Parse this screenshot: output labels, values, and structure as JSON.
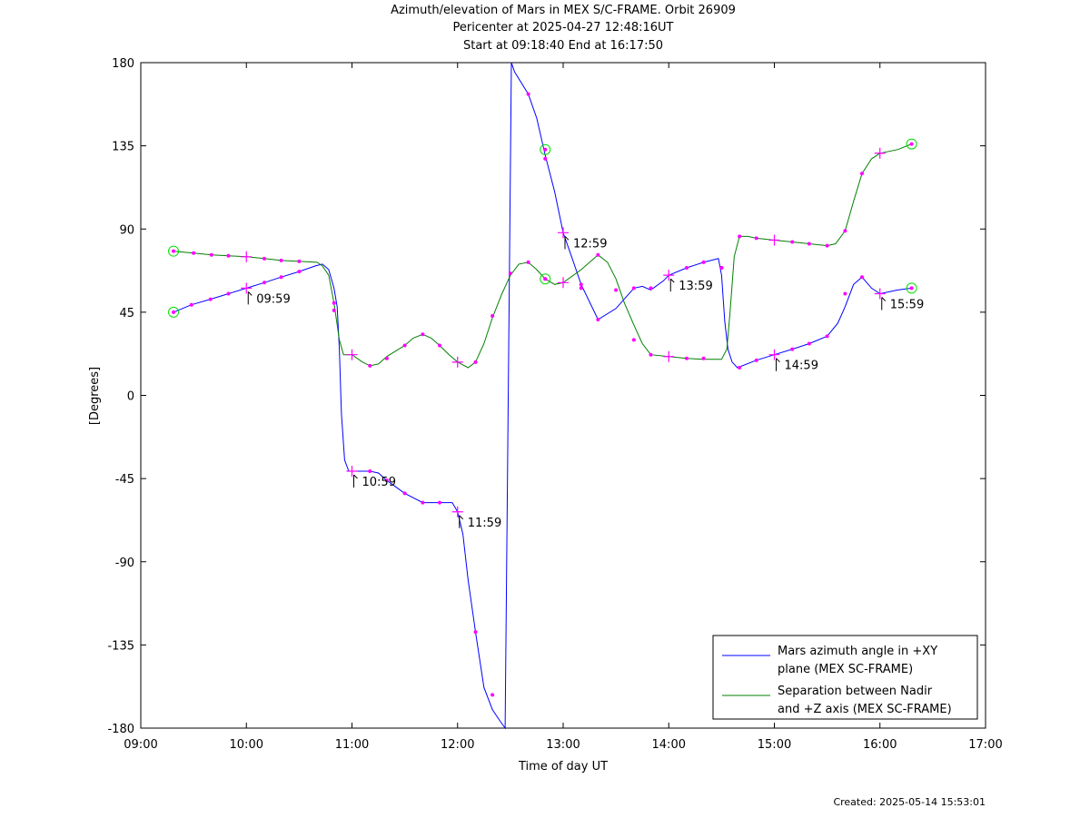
{
  "chart_data": {
    "type": "line",
    "title": "Azimuth/elevation of Mars in MEX S/C-FRAME.  Orbit 26909",
    "subtitle_1": "Pericenter at 2025-04-27 12:48:16UT",
    "subtitle_2": "Start at 09:18:40 End at 16:17:50",
    "xlabel": "Time of day UT",
    "ylabel": "[Degrees]",
    "xlim": [
      9.0,
      17.0
    ],
    "ylim": [
      -180,
      180
    ],
    "x_ticks": [
      {
        "value": 9,
        "label": "09:00"
      },
      {
        "value": 10,
        "label": "10:00"
      },
      {
        "value": 11,
        "label": "11:00"
      },
      {
        "value": 12,
        "label": "12:00"
      },
      {
        "value": 13,
        "label": "13:00"
      },
      {
        "value": 14,
        "label": "14:00"
      },
      {
        "value": 15,
        "label": "15:00"
      },
      {
        "value": 16,
        "label": "16:00"
      },
      {
        "value": 17,
        "label": "17:00"
      }
    ],
    "y_ticks": [
      {
        "value": 180,
        "label": "180"
      },
      {
        "value": 135,
        "label": "135"
      },
      {
        "value": 90,
        "label": "90"
      },
      {
        "value": 45,
        "label": "45"
      },
      {
        "value": 0,
        "label": "0"
      },
      {
        "value": -45,
        "label": "-45"
      },
      {
        "value": -90,
        "label": "-90"
      },
      {
        "value": -135,
        "label": "-135"
      },
      {
        "value": -180,
        "label": "-180"
      }
    ],
    "grid": false,
    "legend_position": "bottom-right",
    "series": [
      {
        "name_line1": "Mars azimuth angle in +XY",
        "name_line2": "plane (MEX SC-FRAME)",
        "color": "#0000ff",
        "points": [
          [
            9.31,
            45
          ],
          [
            9.48,
            49
          ],
          [
            9.66,
            52
          ],
          [
            9.83,
            55
          ],
          [
            10.0,
            58
          ],
          [
            10.17,
            61
          ],
          [
            10.33,
            64
          ],
          [
            10.5,
            67
          ],
          [
            10.65,
            70
          ],
          [
            10.72,
            71
          ],
          [
            10.78,
            68
          ],
          [
            10.83,
            58
          ],
          [
            10.86,
            48
          ],
          [
            10.88,
            25
          ],
          [
            10.9,
            -10
          ],
          [
            10.93,
            -35
          ],
          [
            10.97,
            -41
          ],
          [
            11.0,
            -41
          ],
          [
            11.1,
            -41
          ],
          [
            11.17,
            -41
          ],
          [
            11.25,
            -42
          ],
          [
            11.33,
            -46
          ],
          [
            11.5,
            -53
          ],
          [
            11.67,
            -58
          ],
          [
            11.83,
            -58
          ],
          [
            11.95,
            -58
          ],
          [
            12.0,
            -63
          ],
          [
            12.05,
            -75
          ],
          [
            12.1,
            -100
          ],
          [
            12.17,
            -128
          ],
          [
            12.25,
            -158
          ],
          [
            12.33,
            -170
          ],
          [
            12.4,
            -176
          ],
          [
            12.45,
            -180
          ],
          [
            12.51,
            180
          ],
          [
            12.54,
            175
          ],
          [
            12.67,
            163
          ],
          [
            12.75,
            150
          ],
          [
            12.83,
            130
          ],
          [
            12.92,
            110
          ],
          [
            13.0,
            88
          ],
          [
            13.08,
            75
          ],
          [
            13.17,
            60
          ],
          [
            13.33,
            41
          ],
          [
            13.5,
            47
          ],
          [
            13.67,
            58
          ],
          [
            13.75,
            59
          ],
          [
            13.83,
            57
          ],
          [
            13.95,
            62
          ],
          [
            14.0,
            65
          ],
          [
            14.17,
            69
          ],
          [
            14.33,
            72
          ],
          [
            14.47,
            74
          ],
          [
            14.5,
            65
          ],
          [
            14.53,
            40
          ],
          [
            14.56,
            25
          ],
          [
            14.6,
            18
          ],
          [
            14.65,
            15
          ],
          [
            14.83,
            19
          ],
          [
            15.0,
            22
          ],
          [
            15.17,
            25
          ],
          [
            15.33,
            28
          ],
          [
            15.5,
            32
          ],
          [
            15.6,
            39
          ],
          [
            15.67,
            48
          ],
          [
            15.75,
            60
          ],
          [
            15.83,
            64
          ],
          [
            15.92,
            58
          ],
          [
            16.0,
            55
          ],
          [
            16.17,
            57
          ],
          [
            16.3,
            58
          ]
        ],
        "crosses": [
          [
            10.0,
            58
          ],
          [
            11.0,
            -41
          ],
          [
            12.0,
            -63
          ],
          [
            13.0,
            88
          ],
          [
            14.0,
            65
          ],
          [
            15.0,
            22
          ],
          [
            16.0,
            55
          ]
        ],
        "dots": [
          [
            9.48,
            49
          ],
          [
            9.66,
            52
          ],
          [
            9.83,
            55
          ],
          [
            10.17,
            61
          ],
          [
            10.33,
            64
          ],
          [
            10.5,
            67
          ],
          [
            10.83,
            50
          ],
          [
            11.17,
            -41
          ],
          [
            11.33,
            -46
          ],
          [
            11.5,
            -53
          ],
          [
            11.67,
            -58
          ],
          [
            11.83,
            -58
          ],
          [
            12.17,
            -128
          ],
          [
            12.33,
            -162
          ],
          [
            12.67,
            163
          ],
          [
            12.83,
            128
          ],
          [
            13.17,
            60
          ],
          [
            13.33,
            41
          ],
          [
            13.67,
            58
          ],
          [
            13.83,
            58
          ],
          [
            14.17,
            69
          ],
          [
            14.33,
            72
          ],
          [
            14.5,
            69
          ],
          [
            14.67,
            15
          ],
          [
            14.83,
            19
          ],
          [
            15.17,
            25
          ],
          [
            15.33,
            28
          ],
          [
            15.5,
            32
          ],
          [
            15.67,
            55
          ],
          [
            15.83,
            64
          ]
        ],
        "circles": [
          [
            9.31,
            45
          ],
          [
            16.3,
            58
          ]
        ],
        "time_labels": [
          {
            "x": 10.0,
            "y": 58,
            "label": "09:59"
          },
          {
            "x": 11.0,
            "y": -41,
            "label": "10:59"
          },
          {
            "x": 12.0,
            "y": -63,
            "label": "11:59"
          },
          {
            "x": 13.0,
            "y": 88,
            "label": "12:59"
          },
          {
            "x": 14.0,
            "y": 65,
            "label": "13:59"
          },
          {
            "x": 15.0,
            "y": 22,
            "label": "14:59"
          },
          {
            "x": 16.0,
            "y": 55,
            "label": "15:59"
          }
        ]
      },
      {
        "name_line1": "Separation between Nadir",
        "name_line2": "and +Z axis (MEX SC-FRAME)",
        "color": "#008000",
        "points": [
          [
            9.31,
            78
          ],
          [
            9.5,
            77
          ],
          [
            9.67,
            76
          ],
          [
            9.83,
            75.5
          ],
          [
            10.0,
            75
          ],
          [
            10.17,
            74
          ],
          [
            10.33,
            73
          ],
          [
            10.5,
            72.5
          ],
          [
            10.67,
            72
          ],
          [
            10.72,
            70
          ],
          [
            10.78,
            65
          ],
          [
            10.83,
            50
          ],
          [
            10.88,
            30
          ],
          [
            10.92,
            22
          ],
          [
            11.0,
            22
          ],
          [
            11.1,
            18
          ],
          [
            11.17,
            16
          ],
          [
            11.25,
            17
          ],
          [
            11.33,
            21
          ],
          [
            11.5,
            27
          ],
          [
            11.58,
            31
          ],
          [
            11.67,
            33
          ],
          [
            11.75,
            31
          ],
          [
            11.83,
            27
          ],
          [
            11.92,
            22
          ],
          [
            12.0,
            18
          ],
          [
            12.1,
            15
          ],
          [
            12.17,
            18
          ],
          [
            12.25,
            28
          ],
          [
            12.33,
            42
          ],
          [
            12.42,
            55
          ],
          [
            12.5,
            65
          ],
          [
            12.58,
            71
          ],
          [
            12.67,
            72
          ],
          [
            12.75,
            68
          ],
          [
            12.83,
            63
          ],
          [
            12.92,
            60
          ],
          [
            13.0,
            61
          ],
          [
            13.17,
            68
          ],
          [
            13.33,
            76
          ],
          [
            13.42,
            72
          ],
          [
            13.5,
            63
          ],
          [
            13.58,
            50
          ],
          [
            13.67,
            38
          ],
          [
            13.75,
            28
          ],
          [
            13.83,
            22
          ],
          [
            14.0,
            21
          ],
          [
            14.17,
            20
          ],
          [
            14.33,
            19.5
          ],
          [
            14.5,
            19.5
          ],
          [
            14.55,
            25
          ],
          [
            14.58,
            45
          ],
          [
            14.62,
            75
          ],
          [
            14.67,
            86
          ],
          [
            14.75,
            86
          ],
          [
            14.83,
            85
          ],
          [
            15.0,
            84
          ],
          [
            15.17,
            83
          ],
          [
            15.33,
            82
          ],
          [
            15.5,
            81
          ],
          [
            15.58,
            82
          ],
          [
            15.67,
            89
          ],
          [
            15.75,
            105
          ],
          [
            15.83,
            120
          ],
          [
            15.92,
            128
          ],
          [
            16.0,
            131
          ],
          [
            16.17,
            133
          ],
          [
            16.3,
            136
          ]
        ],
        "crosses": [
          [
            10.0,
            75
          ],
          [
            11.0,
            22
          ],
          [
            12.0,
            18
          ],
          [
            13.0,
            61
          ],
          [
            14.0,
            21
          ],
          [
            15.0,
            84
          ],
          [
            16.0,
            131
          ]
        ],
        "dots": [
          [
            9.5,
            77
          ],
          [
            9.67,
            76
          ],
          [
            9.83,
            75.5
          ],
          [
            10.17,
            74
          ],
          [
            10.33,
            73
          ],
          [
            10.5,
            72.5
          ],
          [
            10.83,
            46
          ],
          [
            11.17,
            16
          ],
          [
            11.33,
            20
          ],
          [
            11.5,
            27
          ],
          [
            11.67,
            33
          ],
          [
            11.83,
            27
          ],
          [
            12.17,
            18
          ],
          [
            12.33,
            43
          ],
          [
            12.5,
            66
          ],
          [
            12.67,
            72
          ],
          [
            12.83,
            63
          ],
          [
            13.17,
            58
          ],
          [
            13.33,
            76
          ],
          [
            13.5,
            57
          ],
          [
            13.67,
            30
          ],
          [
            13.83,
            22
          ],
          [
            14.17,
            20
          ],
          [
            14.33,
            20
          ],
          [
            14.5,
            69
          ],
          [
            14.67,
            86
          ],
          [
            14.83,
            85
          ],
          [
            15.17,
            83
          ],
          [
            15.33,
            82
          ],
          [
            15.5,
            81
          ],
          [
            15.67,
            89
          ],
          [
            15.83,
            120
          ]
        ],
        "circles": [
          [
            9.31,
            78
          ],
          [
            16.3,
            136
          ],
          [
            12.83,
            133
          ],
          [
            12.83,
            63
          ]
        ]
      }
    ]
  },
  "footer": {
    "created": "Created: 2025-05-14 15:53:01"
  }
}
